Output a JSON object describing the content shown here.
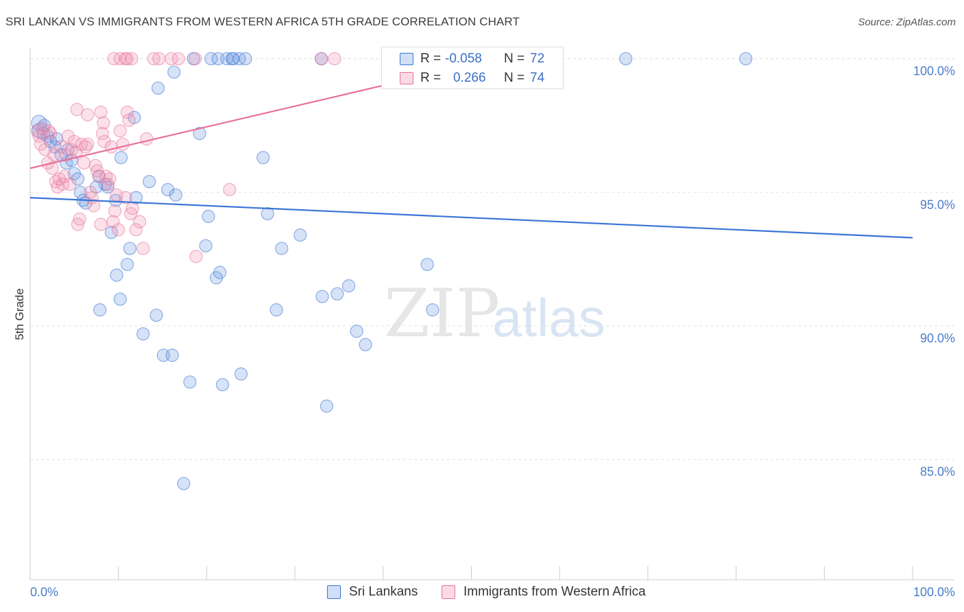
{
  "title": "SRI LANKAN VS IMMIGRANTS FROM WESTERN AFRICA 5TH GRADE CORRELATION CHART",
  "source": "Source: ZipAtlas.com",
  "watermark": {
    "zip": "ZIP",
    "atlas": "atlas"
  },
  "colors": {
    "blue": "#3a75d6",
    "blue_fill": "rgba(120,160,230,0.30)",
    "pink": "#e8719a",
    "pink_fill": "rgba(240,150,180,0.28)",
    "grid": "#e2e2e2",
    "tick_label": "#4a7cc9"
  },
  "legend": {
    "rows": [
      {
        "r_label": "R =",
        "r_value": "-0.058",
        "n_label": "N =",
        "n_value": "72"
      },
      {
        "r_label": "R =",
        "r_value": "0.266",
        "n_label": "N =",
        "n_value": "74"
      }
    ]
  },
  "chart_data": {
    "type": "scatter",
    "title": "SRI LANKAN VS IMMIGRANTS FROM WESTERN AFRICA 5TH GRADE CORRELATION CHART",
    "xlabel": "",
    "ylabel": "5th Grade",
    "xlim": [
      0,
      100
    ],
    "ylim": [
      80.5,
      100.4
    ],
    "x_tick_labels": [
      "0.0%",
      "100.0%"
    ],
    "y_ticks": [
      85,
      90,
      95,
      100
    ],
    "y_tick_labels": [
      "85.0%",
      "90.0%",
      "95.0%",
      "100.0%"
    ],
    "grid": true,
    "legend_position": "bottom",
    "series": [
      {
        "name": "Sri Lankans",
        "color": "#3a75d6",
        "trend": {
          "x": [
            0,
            100
          ],
          "y": [
            94.8,
            93.3
          ]
        },
        "points": [
          [
            1.0,
            97.6
          ],
          [
            1.1,
            97.3
          ],
          [
            1.5,
            97.2
          ],
          [
            1.6,
            97.5
          ],
          [
            2.0,
            97.1
          ],
          [
            2.3,
            96.9
          ],
          [
            2.8,
            96.7
          ],
          [
            3.0,
            97.0
          ],
          [
            3.5,
            96.4
          ],
          [
            4.1,
            96.1
          ],
          [
            4.3,
            96.6
          ],
          [
            4.7,
            96.2
          ],
          [
            5.0,
            95.7
          ],
          [
            5.4,
            95.5
          ],
          [
            5.7,
            95.0
          ],
          [
            6.0,
            94.7
          ],
          [
            6.3,
            94.6
          ],
          [
            7.5,
            95.2
          ],
          [
            7.8,
            95.6
          ],
          [
            8.5,
            95.3
          ],
          [
            8.8,
            95.2
          ],
          [
            9.2,
            93.5
          ],
          [
            9.7,
            94.7
          ],
          [
            10.3,
            96.3
          ],
          [
            11.3,
            92.9
          ],
          [
            11.8,
            97.8
          ],
          [
            12.0,
            94.8
          ],
          [
            13.5,
            95.4
          ],
          [
            15.6,
            95.1
          ],
          [
            16.5,
            94.9
          ],
          [
            19.2,
            97.2
          ],
          [
            7.9,
            90.6
          ],
          [
            9.8,
            91.9
          ],
          [
            11.0,
            92.3
          ],
          [
            10.2,
            91.0
          ],
          [
            12.8,
            89.7
          ],
          [
            14.3,
            90.4
          ],
          [
            15.1,
            88.9
          ],
          [
            16.1,
            88.9
          ],
          [
            18.1,
            87.9
          ],
          [
            19.9,
            93.0
          ],
          [
            20.2,
            94.1
          ],
          [
            21.1,
            91.8
          ],
          [
            21.5,
            92.0
          ],
          [
            21.8,
            87.8
          ],
          [
            23.9,
            88.2
          ],
          [
            26.4,
            96.3
          ],
          [
            26.9,
            94.2
          ],
          [
            27.9,
            90.6
          ],
          [
            28.5,
            92.9
          ],
          [
            30.6,
            93.4
          ],
          [
            33.1,
            91.1
          ],
          [
            33.6,
            87.0
          ],
          [
            34.8,
            91.2
          ],
          [
            36.1,
            91.5
          ],
          [
            37.0,
            89.8
          ],
          [
            38.0,
            89.3
          ],
          [
            45.0,
            92.3
          ],
          [
            45.6,
            90.6
          ],
          [
            14.5,
            98.9
          ],
          [
            16.3,
            99.5
          ],
          [
            18.5,
            100.0
          ],
          [
            20.5,
            100.0
          ],
          [
            21.3,
            100.0
          ],
          [
            22.3,
            100.0
          ],
          [
            22.9,
            100.0
          ],
          [
            23.0,
            100.0
          ],
          [
            23.7,
            100.0
          ],
          [
            24.4,
            100.0
          ],
          [
            33.0,
            100.0
          ],
          [
            67.5,
            100.0
          ],
          [
            81.1,
            100.0
          ],
          [
            17.4,
            84.1
          ]
        ]
      },
      {
        "name": "Immigrants from Western Africa",
        "color": "#e8719a",
        "trend": {
          "x": [
            0,
            40
          ],
          "y": [
            95.9,
            99.0
          ]
        },
        "points": [
          [
            0.8,
            97.3
          ],
          [
            1.0,
            97.1
          ],
          [
            1.2,
            96.8
          ],
          [
            1.4,
            97.4
          ],
          [
            1.7,
            96.6
          ],
          [
            2.0,
            96.1
          ],
          [
            2.3,
            97.2
          ],
          [
            2.5,
            95.9
          ],
          [
            2.7,
            96.4
          ],
          [
            2.9,
            95.4
          ],
          [
            3.1,
            95.2
          ],
          [
            3.3,
            95.5
          ],
          [
            3.5,
            96.7
          ],
          [
            3.7,
            95.3
          ],
          [
            3.9,
            95.6
          ],
          [
            4.1,
            96.4
          ],
          [
            4.3,
            97.1
          ],
          [
            4.5,
            95.3
          ],
          [
            4.7,
            96.6
          ],
          [
            5.0,
            96.9
          ],
          [
            5.2,
            96.5
          ],
          [
            5.4,
            93.8
          ],
          [
            5.6,
            94.0
          ],
          [
            5.8,
            96.8
          ],
          [
            6.1,
            96.1
          ],
          [
            6.3,
            96.7
          ],
          [
            6.5,
            96.8
          ],
          [
            6.8,
            95.0
          ],
          [
            7.0,
            94.8
          ],
          [
            7.2,
            94.5
          ],
          [
            7.4,
            96.0
          ],
          [
            7.6,
            95.8
          ],
          [
            7.8,
            95.6
          ],
          [
            8.0,
            93.8
          ],
          [
            8.2,
            97.2
          ],
          [
            8.4,
            96.9
          ],
          [
            8.6,
            95.6
          ],
          [
            8.8,
            95.3
          ],
          [
            9.0,
            95.5
          ],
          [
            9.2,
            96.7
          ],
          [
            9.4,
            93.9
          ],
          [
            9.6,
            94.3
          ],
          [
            9.8,
            94.9
          ],
          [
            10.0,
            93.6
          ],
          [
            10.2,
            97.3
          ],
          [
            10.5,
            96.8
          ],
          [
            10.8,
            94.8
          ],
          [
            11.0,
            98.0
          ],
          [
            11.2,
            97.7
          ],
          [
            11.4,
            94.2
          ],
          [
            11.6,
            94.4
          ],
          [
            12.0,
            93.6
          ],
          [
            12.4,
            93.9
          ],
          [
            12.8,
            92.9
          ],
          [
            13.2,
            97.0
          ],
          [
            5.3,
            98.1
          ],
          [
            6.5,
            97.9
          ],
          [
            8.0,
            98.0
          ],
          [
            8.3,
            97.6
          ],
          [
            9.5,
            100.0
          ],
          [
            10.2,
            100.0
          ],
          [
            10.8,
            100.0
          ],
          [
            11.0,
            100.0
          ],
          [
            11.5,
            100.0
          ],
          [
            14.0,
            100.0
          ],
          [
            14.6,
            100.0
          ],
          [
            16.0,
            100.0
          ],
          [
            16.8,
            100.0
          ],
          [
            18.7,
            100.0
          ],
          [
            33.0,
            100.0
          ],
          [
            34.5,
            100.0
          ],
          [
            22.6,
            95.1
          ],
          [
            18.8,
            92.6
          ],
          [
            2.1,
            97.3
          ]
        ]
      }
    ]
  }
}
